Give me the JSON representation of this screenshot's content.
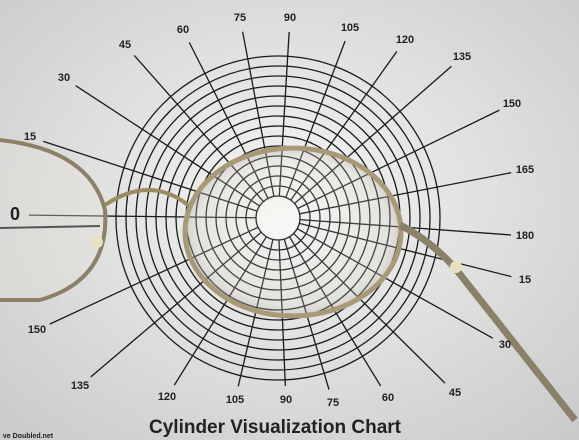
{
  "chart": {
    "title": "Cylinder Visualization Chart",
    "angle_labels": [
      "45",
      "60",
      "75",
      "90",
      "105",
      "120",
      "135",
      "150",
      "165",
      "180",
      "15",
      "30",
      "45",
      "60",
      "75",
      "90",
      "105",
      "120",
      "135",
      "150",
      "15",
      "30",
      "0"
    ]
  },
  "watermark": "ve Doubled.net"
}
